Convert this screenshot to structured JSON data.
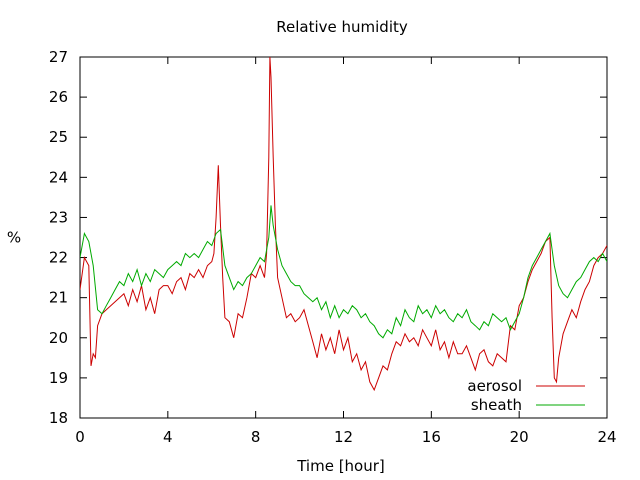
{
  "chart_data": {
    "type": "line",
    "title": "Relative humidity",
    "xlabel": "Time [hour]",
    "ylabel": "%",
    "xlim": [
      0,
      24
    ],
    "ylim": [
      18,
      27
    ],
    "xticks": [
      0,
      4,
      8,
      12,
      16,
      20,
      24
    ],
    "yticks": [
      18,
      19,
      20,
      21,
      22,
      23,
      24,
      25,
      26,
      27
    ],
    "grid": false,
    "legend": "bottom-right",
    "series": [
      {
        "name": "aerosol",
        "color": "#cc0000",
        "points": [
          [
            0.0,
            21.2
          ],
          [
            0.2,
            22.0
          ],
          [
            0.4,
            21.8
          ],
          [
            0.5,
            19.3
          ],
          [
            0.6,
            19.6
          ],
          [
            0.7,
            19.5
          ],
          [
            0.8,
            20.3
          ],
          [
            1.0,
            20.6
          ],
          [
            1.2,
            20.7
          ],
          [
            1.4,
            20.8
          ],
          [
            1.6,
            20.9
          ],
          [
            1.8,
            21.0
          ],
          [
            2.0,
            21.1
          ],
          [
            2.2,
            20.8
          ],
          [
            2.4,
            21.2
          ],
          [
            2.6,
            20.9
          ],
          [
            2.8,
            21.3
          ],
          [
            3.0,
            20.7
          ],
          [
            3.2,
            21.0
          ],
          [
            3.4,
            20.6
          ],
          [
            3.6,
            21.2
          ],
          [
            3.8,
            21.3
          ],
          [
            4.0,
            21.3
          ],
          [
            4.2,
            21.1
          ],
          [
            4.4,
            21.4
          ],
          [
            4.6,
            21.5
          ],
          [
            4.8,
            21.2
          ],
          [
            5.0,
            21.6
          ],
          [
            5.2,
            21.5
          ],
          [
            5.4,
            21.7
          ],
          [
            5.6,
            21.5
          ],
          [
            5.8,
            21.8
          ],
          [
            6.0,
            21.9
          ],
          [
            6.1,
            22.1
          ],
          [
            6.2,
            23.0
          ],
          [
            6.3,
            24.3
          ],
          [
            6.4,
            22.8
          ],
          [
            6.5,
            21.5
          ],
          [
            6.6,
            20.5
          ],
          [
            6.8,
            20.4
          ],
          [
            7.0,
            20.0
          ],
          [
            7.2,
            20.6
          ],
          [
            7.4,
            20.5
          ],
          [
            7.6,
            21.0
          ],
          [
            7.8,
            21.6
          ],
          [
            8.0,
            21.5
          ],
          [
            8.2,
            21.8
          ],
          [
            8.4,
            21.5
          ],
          [
            8.5,
            22.1
          ],
          [
            8.6,
            24.5
          ],
          [
            8.65,
            27.0
          ],
          [
            8.7,
            26.5
          ],
          [
            8.8,
            24.5
          ],
          [
            8.9,
            22.8
          ],
          [
            9.0,
            21.5
          ],
          [
            9.2,
            21.0
          ],
          [
            9.4,
            20.5
          ],
          [
            9.6,
            20.6
          ],
          [
            9.8,
            20.4
          ],
          [
            10.0,
            20.5
          ],
          [
            10.2,
            20.7
          ],
          [
            10.4,
            20.3
          ],
          [
            10.6,
            19.9
          ],
          [
            10.8,
            19.5
          ],
          [
            11.0,
            20.1
          ],
          [
            11.2,
            19.7
          ],
          [
            11.4,
            20.0
          ],
          [
            11.6,
            19.6
          ],
          [
            11.8,
            20.2
          ],
          [
            12.0,
            19.7
          ],
          [
            12.2,
            20.0
          ],
          [
            12.4,
            19.4
          ],
          [
            12.6,
            19.6
          ],
          [
            12.8,
            19.2
          ],
          [
            13.0,
            19.4
          ],
          [
            13.2,
            18.9
          ],
          [
            13.4,
            18.7
          ],
          [
            13.6,
            19.0
          ],
          [
            13.8,
            19.3
          ],
          [
            14.0,
            19.2
          ],
          [
            14.2,
            19.6
          ],
          [
            14.4,
            19.9
          ],
          [
            14.6,
            19.8
          ],
          [
            14.8,
            20.1
          ],
          [
            15.0,
            19.9
          ],
          [
            15.2,
            20.0
          ],
          [
            15.4,
            19.8
          ],
          [
            15.6,
            20.2
          ],
          [
            15.8,
            20.0
          ],
          [
            16.0,
            19.8
          ],
          [
            16.2,
            20.2
          ],
          [
            16.4,
            19.7
          ],
          [
            16.6,
            19.9
          ],
          [
            16.8,
            19.5
          ],
          [
            17.0,
            19.9
          ],
          [
            17.2,
            19.6
          ],
          [
            17.4,
            19.6
          ],
          [
            17.6,
            19.8
          ],
          [
            17.8,
            19.5
          ],
          [
            18.0,
            19.2
          ],
          [
            18.2,
            19.6
          ],
          [
            18.4,
            19.7
          ],
          [
            18.6,
            19.4
          ],
          [
            18.8,
            19.3
          ],
          [
            19.0,
            19.6
          ],
          [
            19.2,
            19.5
          ],
          [
            19.4,
            19.4
          ],
          [
            19.6,
            20.3
          ],
          [
            19.8,
            20.2
          ],
          [
            20.0,
            20.8
          ],
          [
            20.2,
            21.0
          ],
          [
            20.4,
            21.4
          ],
          [
            20.6,
            21.7
          ],
          [
            20.8,
            21.9
          ],
          [
            21.0,
            22.1
          ],
          [
            21.2,
            22.4
          ],
          [
            21.4,
            22.5
          ],
          [
            21.5,
            20.5
          ],
          [
            21.6,
            19.0
          ],
          [
            21.7,
            18.9
          ],
          [
            21.8,
            19.5
          ],
          [
            22.0,
            20.1
          ],
          [
            22.2,
            20.4
          ],
          [
            22.4,
            20.7
          ],
          [
            22.6,
            20.5
          ],
          [
            22.8,
            20.9
          ],
          [
            23.0,
            21.2
          ],
          [
            23.2,
            21.4
          ],
          [
            23.4,
            21.8
          ],
          [
            23.6,
            22.0
          ],
          [
            23.8,
            22.1
          ],
          [
            24.0,
            22.3
          ]
        ]
      },
      {
        "name": "sheath",
        "color": "#00aa00",
        "points": [
          [
            0.0,
            22.0
          ],
          [
            0.2,
            22.6
          ],
          [
            0.4,
            22.4
          ],
          [
            0.6,
            21.8
          ],
          [
            0.8,
            20.7
          ],
          [
            1.0,
            20.6
          ],
          [
            1.2,
            20.8
          ],
          [
            1.4,
            21.0
          ],
          [
            1.6,
            21.2
          ],
          [
            1.8,
            21.4
          ],
          [
            2.0,
            21.3
          ],
          [
            2.2,
            21.6
          ],
          [
            2.4,
            21.4
          ],
          [
            2.6,
            21.7
          ],
          [
            2.8,
            21.3
          ],
          [
            3.0,
            21.6
          ],
          [
            3.2,
            21.4
          ],
          [
            3.4,
            21.7
          ],
          [
            3.6,
            21.6
          ],
          [
            3.8,
            21.5
          ],
          [
            4.0,
            21.7
          ],
          [
            4.2,
            21.8
          ],
          [
            4.4,
            21.9
          ],
          [
            4.6,
            21.8
          ],
          [
            4.8,
            22.1
          ],
          [
            5.0,
            22.0
          ],
          [
            5.2,
            22.1
          ],
          [
            5.4,
            22.0
          ],
          [
            5.6,
            22.2
          ],
          [
            5.8,
            22.4
          ],
          [
            6.0,
            22.3
          ],
          [
            6.2,
            22.6
          ],
          [
            6.4,
            22.7
          ],
          [
            6.6,
            21.8
          ],
          [
            6.8,
            21.5
          ],
          [
            7.0,
            21.2
          ],
          [
            7.2,
            21.4
          ],
          [
            7.4,
            21.3
          ],
          [
            7.6,
            21.5
          ],
          [
            7.8,
            21.6
          ],
          [
            8.0,
            21.8
          ],
          [
            8.2,
            22.0
          ],
          [
            8.4,
            21.9
          ],
          [
            8.6,
            22.5
          ],
          [
            8.7,
            23.3
          ],
          [
            8.8,
            22.8
          ],
          [
            9.0,
            22.2
          ],
          [
            9.2,
            21.8
          ],
          [
            9.4,
            21.6
          ],
          [
            9.6,
            21.4
          ],
          [
            9.8,
            21.3
          ],
          [
            10.0,
            21.3
          ],
          [
            10.2,
            21.1
          ],
          [
            10.4,
            21.0
          ],
          [
            10.6,
            20.9
          ],
          [
            10.8,
            21.0
          ],
          [
            11.0,
            20.7
          ],
          [
            11.2,
            20.9
          ],
          [
            11.4,
            20.5
          ],
          [
            11.6,
            20.8
          ],
          [
            11.8,
            20.5
          ],
          [
            12.0,
            20.7
          ],
          [
            12.2,
            20.6
          ],
          [
            12.4,
            20.8
          ],
          [
            12.6,
            20.7
          ],
          [
            12.8,
            20.5
          ],
          [
            13.0,
            20.6
          ],
          [
            13.2,
            20.4
          ],
          [
            13.4,
            20.3
          ],
          [
            13.6,
            20.1
          ],
          [
            13.8,
            20.0
          ],
          [
            14.0,
            20.2
          ],
          [
            14.2,
            20.1
          ],
          [
            14.4,
            20.5
          ],
          [
            14.6,
            20.3
          ],
          [
            14.8,
            20.7
          ],
          [
            15.0,
            20.5
          ],
          [
            15.2,
            20.4
          ],
          [
            15.4,
            20.8
          ],
          [
            15.6,
            20.6
          ],
          [
            15.8,
            20.7
          ],
          [
            16.0,
            20.5
          ],
          [
            16.2,
            20.8
          ],
          [
            16.4,
            20.6
          ],
          [
            16.6,
            20.7
          ],
          [
            16.8,
            20.5
          ],
          [
            17.0,
            20.4
          ],
          [
            17.2,
            20.6
          ],
          [
            17.4,
            20.5
          ],
          [
            17.6,
            20.7
          ],
          [
            17.8,
            20.4
          ],
          [
            18.0,
            20.3
          ],
          [
            18.2,
            20.2
          ],
          [
            18.4,
            20.4
          ],
          [
            18.6,
            20.3
          ],
          [
            18.8,
            20.6
          ],
          [
            19.0,
            20.5
          ],
          [
            19.2,
            20.4
          ],
          [
            19.4,
            20.5
          ],
          [
            19.6,
            20.2
          ],
          [
            19.8,
            20.4
          ],
          [
            20.0,
            20.6
          ],
          [
            20.2,
            21.0
          ],
          [
            20.4,
            21.5
          ],
          [
            20.6,
            21.8
          ],
          [
            20.8,
            22.0
          ],
          [
            21.0,
            22.2
          ],
          [
            21.2,
            22.4
          ],
          [
            21.4,
            22.6
          ],
          [
            21.6,
            21.8
          ],
          [
            21.8,
            21.3
          ],
          [
            22.0,
            21.1
          ],
          [
            22.2,
            21.0
          ],
          [
            22.4,
            21.2
          ],
          [
            22.6,
            21.4
          ],
          [
            22.8,
            21.5
          ],
          [
            23.0,
            21.7
          ],
          [
            23.2,
            21.9
          ],
          [
            23.4,
            22.0
          ],
          [
            23.6,
            21.9
          ],
          [
            23.8,
            22.1
          ],
          [
            24.0,
            21.9
          ]
        ]
      }
    ]
  }
}
